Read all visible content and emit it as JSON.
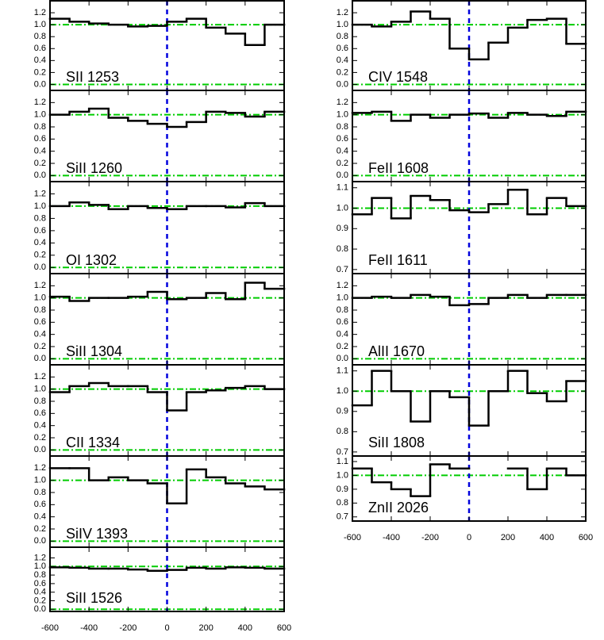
{
  "chart_data": [
    {
      "type": "line",
      "label": "SII 1253",
      "x": [
        -550,
        -450,
        -350,
        -250,
        -150,
        -50,
        50,
        150,
        250,
        350,
        450,
        550
      ],
      "values": [
        1.1,
        1.05,
        1.02,
        1.0,
        0.97,
        0.98,
        1.05,
        1.1,
        0.95,
        0.85,
        0.66,
        1.0
      ],
      "xlim": [
        -600,
        600
      ],
      "xticks": [
        -600,
        -400,
        -200,
        0,
        200,
        400,
        600
      ],
      "ylim": [
        -0.1,
        1.4
      ],
      "yticks": [
        {
          "value": 0,
          "label": "0.0"
        },
        0.2,
        0.4,
        0.6,
        0.8,
        {
          "value": 1,
          "label": "1.0"
        },
        1.2
      ],
      "hlines": [
        1,
        0
      ],
      "vline": 0,
      "show_xlabels": false,
      "color": "#000000",
      "hline_color": "#00cc00",
      "vline_color": "#0000dd"
    },
    {
      "type": "line",
      "label": "SiII 1260",
      "x": [
        -550,
        -450,
        -350,
        -250,
        -150,
        -50,
        50,
        150,
        250,
        350,
        450,
        550
      ],
      "values": [
        1.0,
        1.05,
        1.1,
        0.95,
        0.9,
        0.85,
        0.8,
        0.88,
        1.05,
        1.03,
        0.97,
        1.05
      ],
      "xlim": [
        -600,
        600
      ],
      "xticks": [
        -600,
        -400,
        -200,
        0,
        200,
        400,
        600
      ],
      "ylim": [
        -0.1,
        1.4
      ],
      "yticks": [
        {
          "value": 0,
          "label": "0.0"
        },
        0.2,
        0.4,
        0.6,
        0.8,
        {
          "value": 1,
          "label": "1.0"
        },
        1.2
      ],
      "hlines": [
        1,
        0
      ],
      "vline": 0,
      "show_xlabels": false,
      "color": "#000000",
      "hline_color": "#00cc00",
      "vline_color": "#0000dd"
    },
    {
      "type": "line",
      "label": "OI 1302",
      "x": [
        -550,
        -450,
        -350,
        -250,
        -150,
        -50,
        50,
        150,
        250,
        350,
        450,
        550
      ],
      "values": [
        1.0,
        1.06,
        1.02,
        0.95,
        1.0,
        0.97,
        0.95,
        1.0,
        1.0,
        0.98,
        1.05,
        1.0
      ],
      "xlim": [
        -600,
        600
      ],
      "xticks": [
        -600,
        -400,
        -200,
        0,
        200,
        400,
        600
      ],
      "ylim": [
        -0.1,
        1.4
      ],
      "yticks": [
        {
          "value": 0,
          "label": "0.0"
        },
        0.2,
        0.4,
        0.6,
        0.8,
        {
          "value": 1,
          "label": "1.0"
        },
        1.2
      ],
      "hlines": [
        1,
        0
      ],
      "vline": 0,
      "show_xlabels": false,
      "color": "#000000",
      "hline_color": "#00cc00",
      "vline_color": "#0000dd"
    },
    {
      "type": "line",
      "label": "SiII 1304",
      "x": [
        -550,
        -450,
        -350,
        -250,
        -150,
        -50,
        50,
        150,
        250,
        350,
        450,
        550
      ],
      "values": [
        1.02,
        0.95,
        1.0,
        1.0,
        1.02,
        1.1,
        0.98,
        1.0,
        1.08,
        0.98,
        1.25,
        1.15
      ],
      "xlim": [
        -600,
        600
      ],
      "xticks": [
        -600,
        -400,
        -200,
        0,
        200,
        400,
        600
      ],
      "ylim": [
        -0.1,
        1.4
      ],
      "yticks": [
        {
          "value": 0,
          "label": "0.0"
        },
        0.2,
        0.4,
        0.6,
        0.8,
        {
          "value": 1,
          "label": "1.0"
        },
        1.2
      ],
      "hlines": [
        1,
        0
      ],
      "vline": 0,
      "show_xlabels": false,
      "color": "#000000",
      "hline_color": "#00cc00",
      "vline_color": "#0000dd"
    },
    {
      "type": "line",
      "label": "CII 1334",
      "x": [
        -550,
        -450,
        -350,
        -250,
        -150,
        -50,
        50,
        150,
        250,
        350,
        450,
        550
      ],
      "values": [
        0.95,
        1.05,
        1.1,
        1.05,
        1.05,
        0.95,
        0.65,
        0.95,
        0.98,
        1.02,
        1.05,
        1.0
      ],
      "xlim": [
        -600,
        600
      ],
      "xticks": [
        -600,
        -400,
        -200,
        0,
        200,
        400,
        600
      ],
      "ylim": [
        -0.1,
        1.4
      ],
      "yticks": [
        {
          "value": 0,
          "label": "0.0"
        },
        0.2,
        0.4,
        0.6,
        0.8,
        {
          "value": 1,
          "label": "1.0"
        },
        1.2
      ],
      "hlines": [
        1,
        0
      ],
      "vline": 0,
      "show_xlabels": false,
      "color": "#000000",
      "hline_color": "#00cc00",
      "vline_color": "#0000dd"
    },
    {
      "type": "line",
      "label": "SiIV 1393",
      "x": [
        -550,
        -450,
        -350,
        -250,
        -150,
        -50,
        50,
        150,
        250,
        350,
        450,
        550
      ],
      "values": [
        1.2,
        1.2,
        1.0,
        1.05,
        1.0,
        0.95,
        0.62,
        1.18,
        1.05,
        0.95,
        0.9,
        0.85
      ],
      "xlim": [
        -600,
        600
      ],
      "xticks": [
        -600,
        -400,
        -200,
        0,
        200,
        400,
        600
      ],
      "ylim": [
        -0.1,
        1.4
      ],
      "yticks": [
        {
          "value": 0,
          "label": "0.0"
        },
        0.2,
        0.4,
        0.6,
        0.8,
        {
          "value": 1,
          "label": "1.0"
        },
        1.2
      ],
      "hlines": [
        1,
        0
      ],
      "vline": 0,
      "show_xlabels": false,
      "color": "#000000",
      "hline_color": "#00cc00",
      "vline_color": "#0000dd"
    },
    {
      "type": "line",
      "label": "SiII 1526",
      "x": [
        -550,
        -450,
        -350,
        -250,
        -150,
        -50,
        50,
        150,
        250,
        350,
        450,
        550
      ],
      "values": [
        0.98,
        0.97,
        0.95,
        0.95,
        0.93,
        0.9,
        0.92,
        0.97,
        0.95,
        0.98,
        0.97,
        0.95
      ],
      "xlim": [
        -600,
        600
      ],
      "xticks": [
        -600,
        -400,
        -200,
        0,
        200,
        400,
        600
      ],
      "ylim": [
        -0.05,
        1.45
      ],
      "yticks": [
        {
          "value": 0,
          "label": "0.0"
        },
        0.2,
        0.4,
        0.6,
        0.8,
        {
          "value": 1,
          "label": "1.0"
        },
        1.2
      ],
      "hlines": [
        1,
        0
      ],
      "vline": 0,
      "show_xlabels": true,
      "color": "#000000",
      "hline_color": "#00cc00",
      "vline_color": "#0000dd"
    },
    {
      "type": "line",
      "label": "CIV 1548",
      "x": [
        -550,
        -450,
        -350,
        -250,
        -150,
        -50,
        50,
        150,
        250,
        350,
        450,
        550
      ],
      "values": [
        1.0,
        0.97,
        1.05,
        1.22,
        1.1,
        0.6,
        0.42,
        0.7,
        0.95,
        1.08,
        1.1,
        0.68
      ],
      "xlim": [
        -600,
        600
      ],
      "xticks": [
        -600,
        -400,
        -200,
        0,
        200,
        400,
        600
      ],
      "ylim": [
        -0.1,
        1.4
      ],
      "yticks": [
        {
          "value": 0,
          "label": "0.0"
        },
        0.2,
        0.4,
        0.6,
        0.8,
        {
          "value": 1,
          "label": "1.0"
        },
        1.2
      ],
      "hlines": [
        1,
        0
      ],
      "vline": 0,
      "show_xlabels": false,
      "color": "#000000",
      "hline_color": "#00cc00",
      "vline_color": "#0000dd"
    },
    {
      "type": "line",
      "label": "FeII 1608",
      "x": [
        -550,
        -450,
        -350,
        -250,
        -150,
        -50,
        50,
        150,
        250,
        350,
        450,
        550
      ],
      "values": [
        1.03,
        1.05,
        0.9,
        1.0,
        0.95,
        1.0,
        1.02,
        0.95,
        1.03,
        1.0,
        0.98,
        1.05
      ],
      "xlim": [
        -600,
        600
      ],
      "xticks": [
        -600,
        -400,
        -200,
        0,
        200,
        400,
        600
      ],
      "ylim": [
        -0.1,
        1.4
      ],
      "yticks": [
        {
          "value": 0,
          "label": "0.0"
        },
        0.2,
        0.4,
        0.6,
        0.8,
        {
          "value": 1,
          "label": "1.0"
        },
        1.2
      ],
      "hlines": [
        1,
        0
      ],
      "vline": 0,
      "show_xlabels": false,
      "color": "#000000",
      "hline_color": "#00cc00",
      "vline_color": "#0000dd"
    },
    {
      "type": "line",
      "label": "FeII 1611",
      "x": [
        -550,
        -450,
        -350,
        -250,
        -150,
        -50,
        50,
        150,
        250,
        350,
        450,
        550
      ],
      "values": [
        0.97,
        1.05,
        0.95,
        1.06,
        1.04,
        0.99,
        0.98,
        1.02,
        1.09,
        0.97,
        1.05,
        1.01
      ],
      "xlim": [
        -600,
        600
      ],
      "xticks": [
        -600,
        -400,
        -200,
        0,
        200,
        400,
        600
      ],
      "ylim": [
        0.68,
        1.13
      ],
      "yticks": [
        0.7,
        0.8,
        0.9,
        {
          "value": 1,
          "label": "1.0"
        },
        1.1
      ],
      "hlines": [
        1
      ],
      "vline": 0,
      "show_xlabels": false,
      "color": "#000000",
      "hline_color": "#00cc00",
      "vline_color": "#0000dd"
    },
    {
      "type": "line",
      "label": "AlII 1670",
      "x": [
        -550,
        -450,
        -350,
        -250,
        -150,
        -50,
        50,
        150,
        250,
        350,
        450,
        550
      ],
      "values": [
        1.0,
        1.02,
        1.0,
        1.05,
        1.02,
        0.88,
        0.9,
        1.0,
        1.05,
        1.0,
        1.05,
        1.05
      ],
      "xlim": [
        -600,
        600
      ],
      "xticks": [
        -600,
        -400,
        -200,
        0,
        200,
        400,
        600
      ],
      "ylim": [
        -0.1,
        1.4
      ],
      "yticks": [
        {
          "value": 0,
          "label": "0.0"
        },
        0.2,
        0.4,
        0.6,
        0.8,
        {
          "value": 1,
          "label": "1.0"
        },
        1.2
      ],
      "hlines": [
        1,
        0
      ],
      "vline": 0,
      "show_xlabels": false,
      "color": "#000000",
      "hline_color": "#00cc00",
      "vline_color": "#0000dd"
    },
    {
      "type": "line",
      "label": "SiII 1808",
      "x": [
        -550,
        -450,
        -350,
        -250,
        -150,
        -50,
        50,
        150,
        250,
        350,
        450,
        550
      ],
      "values": [
        0.93,
        1.1,
        1.0,
        0.85,
        1.0,
        0.97,
        0.83,
        1.0,
        1.1,
        0.99,
        0.95,
        1.05
      ],
      "xlim": [
        -600,
        600
      ],
      "xticks": [
        -600,
        -400,
        -200,
        0,
        200,
        400,
        600
      ],
      "ylim": [
        0.68,
        1.13
      ],
      "yticks": [
        0.7,
        0.8,
        0.9,
        {
          "value": 1,
          "label": "1.0"
        },
        1.1
      ],
      "hlines": [
        1
      ],
      "vline": 0,
      "show_xlabels": false,
      "color": "#000000",
      "hline_color": "#00cc00",
      "vline_color": "#0000dd"
    },
    {
      "type": "line",
      "label": "ZnII 2026",
      "x": [
        -550,
        -450,
        -350,
        -250,
        -150,
        -50,
        50,
        150,
        250,
        350,
        450,
        550
      ],
      "values": [
        1.05,
        0.95,
        0.9,
        0.85,
        1.08,
        1.05,
        null,
        null,
        1.05,
        0.9,
        1.05,
        1.0
      ],
      "xlim": [
        -600,
        600
      ],
      "xticks": [
        -600,
        -400,
        -200,
        0,
        200,
        400,
        600
      ],
      "ylim": [
        0.67,
        1.14
      ],
      "yticks": [
        0.7,
        0.8,
        0.9,
        {
          "value": 1,
          "label": "1.0"
        },
        1.1
      ],
      "hlines": [
        1
      ],
      "vline": 0,
      "show_xlabels": true,
      "color": "#000000",
      "hline_color": "#00cc00",
      "vline_color": "#0000dd"
    }
  ]
}
